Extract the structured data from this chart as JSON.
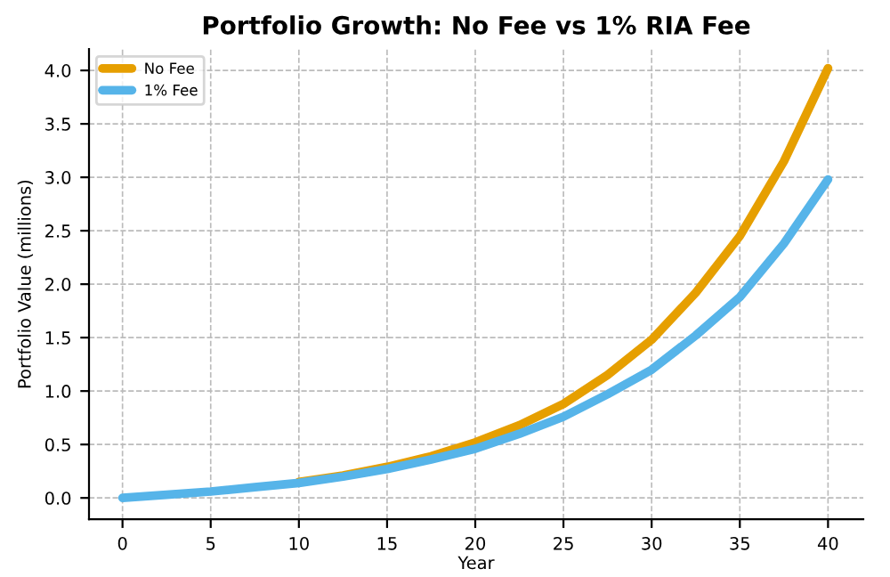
{
  "chart_data": {
    "type": "line",
    "title": "Portfolio Growth: No Fee vs 1% RIA Fee",
    "xlabel": "Year",
    "ylabel": "Portfolio Value (millions)",
    "x": [
      0,
      2.5,
      5,
      7.5,
      10,
      12.5,
      15,
      17.5,
      20,
      22.5,
      25,
      27.5,
      30,
      32.5,
      35,
      37.5,
      40
    ],
    "series": [
      {
        "name": "No Fee",
        "color": "#e69f00",
        "values": [
          null,
          null,
          null,
          null,
          0.15,
          0.21,
          0.29,
          0.39,
          0.52,
          0.68,
          0.88,
          1.15,
          1.48,
          1.92,
          2.45,
          3.15,
          4.02
        ]
      },
      {
        "name": "1% Fee",
        "color": "#56b4e9",
        "values": [
          0,
          0.03,
          0.06,
          0.1,
          0.14,
          0.2,
          0.27,
          0.36,
          0.46,
          0.6,
          0.76,
          0.97,
          1.2,
          1.52,
          1.88,
          2.38,
          2.98
        ]
      }
    ],
    "xlim": [
      -1.9,
      42
    ],
    "ylim": [
      -0.2,
      4.2
    ],
    "xticks": [
      0,
      5,
      10,
      15,
      20,
      25,
      30,
      35,
      40
    ],
    "yticks": [
      {
        "value": 0,
        "label": "0.0"
      },
      {
        "value": 0.5,
        "label": "0.5"
      },
      {
        "value": 1,
        "label": "1.0"
      },
      {
        "value": 1.5,
        "label": "1.5"
      },
      {
        "value": 2,
        "label": "2.0"
      },
      {
        "value": 2.5,
        "label": "2.5"
      },
      {
        "value": 3,
        "label": "3.0"
      },
      {
        "value": 3.5,
        "label": "3.5"
      },
      {
        "value": 4,
        "label": "4.0"
      }
    ],
    "grid": true,
    "legend": "top left",
    "line_style": "solid",
    "marker": "none"
  }
}
